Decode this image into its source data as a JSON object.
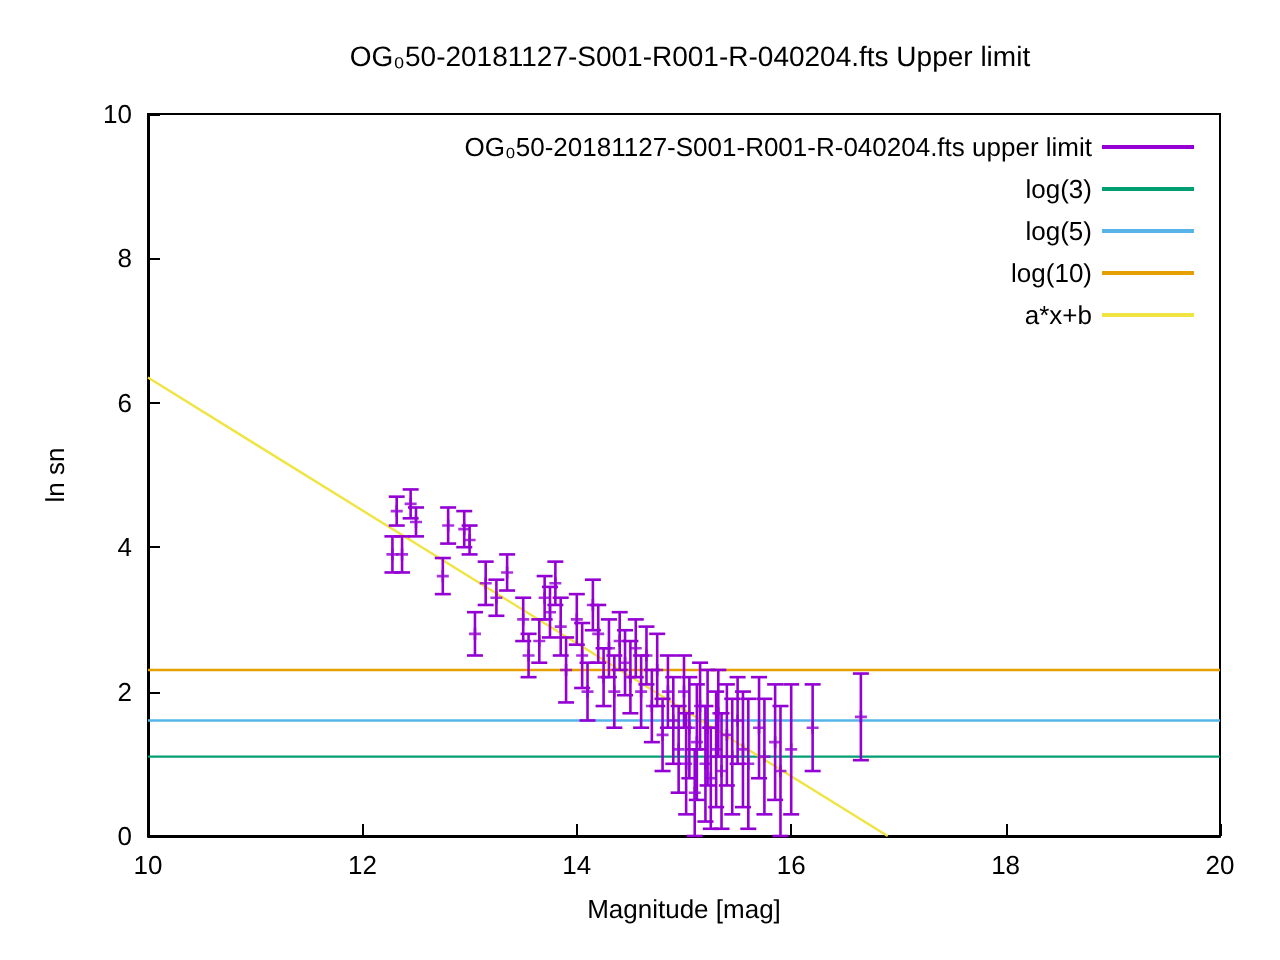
{
  "chart_data": {
    "type": "scatter",
    "title": "OG₀50-20181127-S001-R001-R-040204.fts Upper limit",
    "xlabel": "Magnitude [mag]",
    "ylabel": "ln sn",
    "xlim": [
      10,
      20
    ],
    "xticks": [
      10,
      12,
      14,
      16,
      18,
      20
    ],
    "ylim": [
      0,
      10
    ],
    "yticks": [
      0,
      2,
      4,
      6,
      8,
      10
    ],
    "grid": false,
    "legend": "top right",
    "series": [
      {
        "name": "OG₀50-20181127-S001-R001-R-040204.fts upper limit",
        "type": "scatter",
        "color": "#9400d3",
        "marker": "cross",
        "x": [
          12.28,
          12.37,
          12.32,
          12.45,
          12.5,
          12.75,
          12.8,
          12.95,
          13.0,
          13.05,
          13.15,
          13.25,
          13.35,
          13.5,
          13.55,
          13.65,
          13.7,
          13.75,
          13.8,
          13.85,
          13.9,
          14.0,
          14.05,
          14.1,
          14.15,
          14.2,
          14.25,
          14.3,
          14.35,
          14.4,
          14.45,
          14.5,
          14.55,
          14.6,
          14.65,
          14.7,
          14.75,
          14.8,
          14.85,
          14.9,
          14.95,
          15.0,
          15.02,
          15.05,
          15.1,
          15.12,
          15.15,
          15.2,
          15.22,
          15.25,
          15.3,
          15.32,
          15.35,
          15.4,
          15.45,
          15.5,
          15.55,
          15.6,
          15.7,
          15.75,
          15.85,
          15.9,
          16.0,
          16.2,
          16.65
        ],
        "values": [
          3.9,
          3.9,
          4.5,
          4.6,
          4.35,
          3.6,
          4.3,
          4.25,
          4.1,
          2.8,
          3.5,
          3.3,
          3.65,
          3.0,
          2.5,
          2.7,
          3.3,
          3.1,
          3.5,
          2.9,
          2.3,
          3.0,
          2.5,
          2.0,
          3.2,
          2.8,
          2.2,
          2.6,
          2.0,
          2.7,
          2.4,
          2.2,
          2.6,
          2.0,
          2.5,
          1.8,
          2.3,
          1.4,
          2.0,
          1.6,
          1.2,
          2.0,
          1.0,
          1.5,
          0.6,
          1.3,
          1.8,
          1.0,
          1.5,
          0.8,
          1.2,
          1.7,
          0.9,
          1.4,
          1.1,
          1.6,
          1.2,
          1.0,
          1.5,
          1.1,
          1.3,
          0.9,
          1.2,
          1.5,
          1.65
        ],
        "errors": [
          0.25,
          0.25,
          0.2,
          0.2,
          0.2,
          0.25,
          0.25,
          0.25,
          0.2,
          0.3,
          0.3,
          0.25,
          0.25,
          0.3,
          0.3,
          0.3,
          0.3,
          0.35,
          0.3,
          0.4,
          0.45,
          0.35,
          0.45,
          0.4,
          0.35,
          0.4,
          0.4,
          0.4,
          0.5,
          0.4,
          0.45,
          0.5,
          0.4,
          0.5,
          0.4,
          0.5,
          0.5,
          0.5,
          0.5,
          0.6,
          0.6,
          0.5,
          0.7,
          0.7,
          0.6,
          0.8,
          0.6,
          0.8,
          0.8,
          0.7,
          0.8,
          0.6,
          0.8,
          0.7,
          0.8,
          0.6,
          0.8,
          0.9,
          0.7,
          0.8,
          0.8,
          0.9,
          0.9,
          0.6,
          0.6
        ]
      },
      {
        "name": "log(3)",
        "type": "line",
        "color": "#009e73",
        "x": [
          10,
          20
        ],
        "values": [
          1.1,
          1.1
        ]
      },
      {
        "name": "log(5)",
        "type": "line",
        "color": "#56b4e9",
        "x": [
          10,
          20
        ],
        "values": [
          1.6,
          1.6
        ]
      },
      {
        "name": "log(10)",
        "type": "line",
        "color": "#e69f00",
        "x": [
          10,
          20
        ],
        "values": [
          2.3,
          2.3
        ]
      },
      {
        "name": "a*x+b",
        "type": "line",
        "color": "#f0e442",
        "x": [
          10,
          16.9
        ],
        "values": [
          6.35,
          0
        ]
      }
    ]
  }
}
